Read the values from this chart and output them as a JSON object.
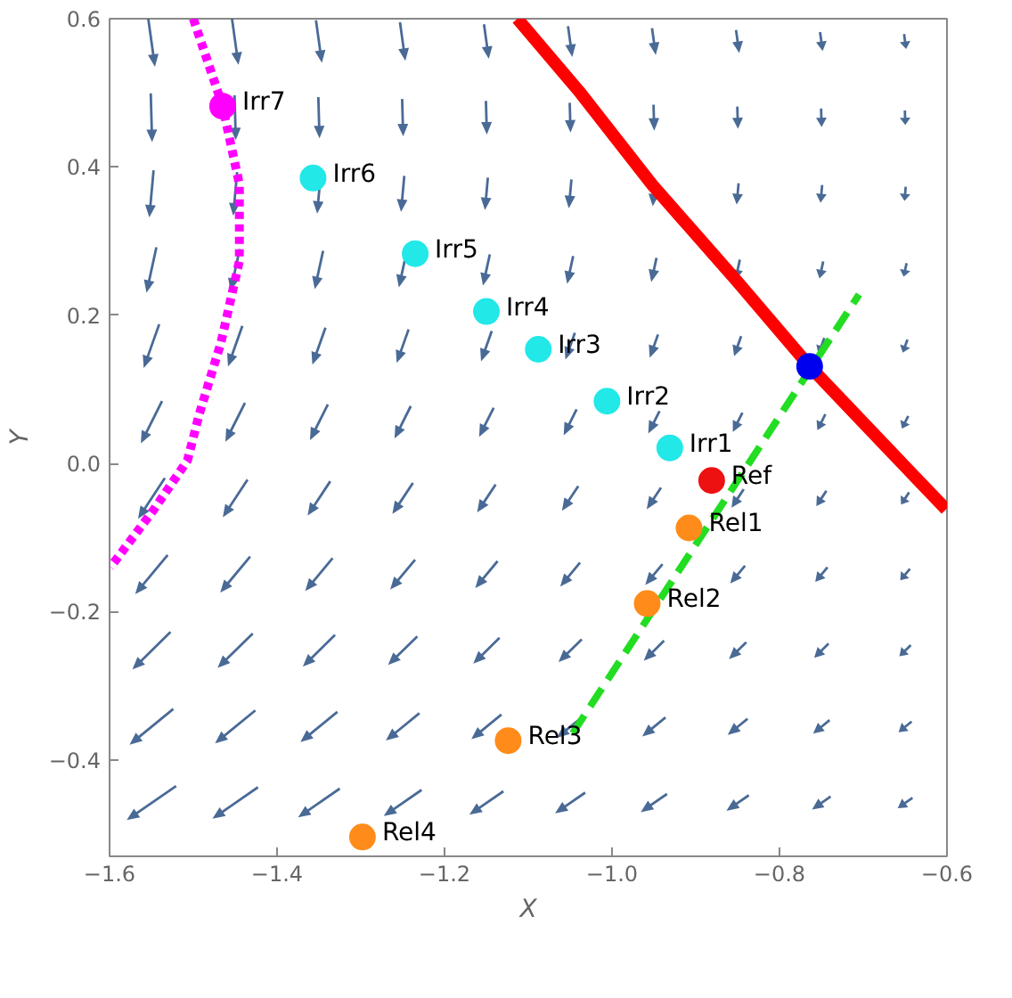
{
  "chart_data": {
    "type": "scatter",
    "xlabel": "X",
    "ylabel": "Y",
    "xlim": [
      -1.6,
      -0.6
    ],
    "ylim": [
      -0.53,
      0.6
    ],
    "xticks": [
      {
        "value": -1.6,
        "label": "−1.6"
      },
      {
        "value": -1.4,
        "label": "−1.4"
      },
      {
        "value": -1.2,
        "label": "−1.2"
      },
      {
        "value": -1.0,
        "label": "−1.0"
      },
      {
        "value": -0.8,
        "label": "−0.8"
      },
      {
        "value": -0.6,
        "label": "−0.6"
      }
    ],
    "yticks": [
      {
        "value": -0.4,
        "label": "−0.4"
      },
      {
        "value": -0.2,
        "label": "−0.2"
      },
      {
        "value": 0.0,
        "label": "0.0"
      },
      {
        "value": 0.2,
        "label": "0.2"
      },
      {
        "value": 0.4,
        "label": "0.4"
      },
      {
        "value": 0.6,
        "label": "0.6"
      }
    ],
    "grid": false,
    "series": [
      {
        "type": "line",
        "line_style": "solid",
        "color": "#ff0000",
        "x": [
          -1.113,
          -1.04,
          -0.952,
          -0.85,
          -0.764,
          -0.689,
          -0.601
        ],
        "values": [
          0.6,
          0.503,
          0.376,
          0.245,
          0.131,
          0.042,
          -0.062
        ]
      },
      {
        "type": "line",
        "line_style": "dotted",
        "color": "#ff00ff",
        "x": [
          -1.5,
          -1.465,
          -1.445,
          -1.445,
          -1.467,
          -1.493,
          -1.507,
          -1.547,
          -1.599
        ],
        "values": [
          0.6,
          0.482,
          0.377,
          0.273,
          0.163,
          0.066,
          0.004,
          -0.062,
          -0.14
        ]
      },
      {
        "type": "line",
        "line_style": "dashed",
        "color": "#22dd22",
        "x": [
          -1.047,
          -0.705
        ],
        "values": [
          -0.364,
          0.228
        ]
      },
      {
        "type": "scatter",
        "marker": "circle",
        "color": "#ff00ff",
        "x": [
          -1.465
        ],
        "values": [
          0.482
        ]
      },
      {
        "type": "scatter",
        "marker": "circle",
        "color": "#22e8e8",
        "x": [
          -1.357,
          -1.235,
          -1.15,
          -1.088,
          -1.006,
          -0.931
        ],
        "values": [
          0.385,
          0.283,
          0.205,
          0.154,
          0.084,
          0.021
        ]
      },
      {
        "type": "scatter",
        "marker": "circle",
        "color": "#ee1111",
        "x": [
          -0.881
        ],
        "values": [
          -0.023
        ]
      },
      {
        "type": "scatter",
        "marker": "circle",
        "color": "#ff8c1a",
        "x": [
          -0.908,
          -0.958,
          -1.124,
          -1.298
        ],
        "values": [
          -0.087,
          -0.189,
          -0.374,
          -0.504
        ]
      },
      {
        "type": "scatter",
        "marker": "circle",
        "color": "#0000ee",
        "x": [
          -0.764
        ],
        "values": [
          0.131
        ]
      }
    ],
    "annotations": [
      {
        "text": "Irr7",
        "x": -1.465,
        "y": 0.482
      },
      {
        "text": "Irr6",
        "x": -1.357,
        "y": 0.385
      },
      {
        "text": "Irr5",
        "x": -1.235,
        "y": 0.283
      },
      {
        "text": "Irr4",
        "x": -1.15,
        "y": 0.205
      },
      {
        "text": "Irr3",
        "x": -1.088,
        "y": 0.154
      },
      {
        "text": "Irr2",
        "x": -1.006,
        "y": 0.084
      },
      {
        "text": "Irr1",
        "x": -0.931,
        "y": 0.021
      },
      {
        "text": "Ref",
        "x": -0.881,
        "y": -0.023
      },
      {
        "text": "Rel1",
        "x": -0.908,
        "y": -0.087
      },
      {
        "text": "Rel2",
        "x": -0.958,
        "y": -0.189
      },
      {
        "text": "Rel3",
        "x": -1.124,
        "y": -0.374
      },
      {
        "text": "Rel4",
        "x": -1.298,
        "y": -0.504
      }
    ]
  }
}
